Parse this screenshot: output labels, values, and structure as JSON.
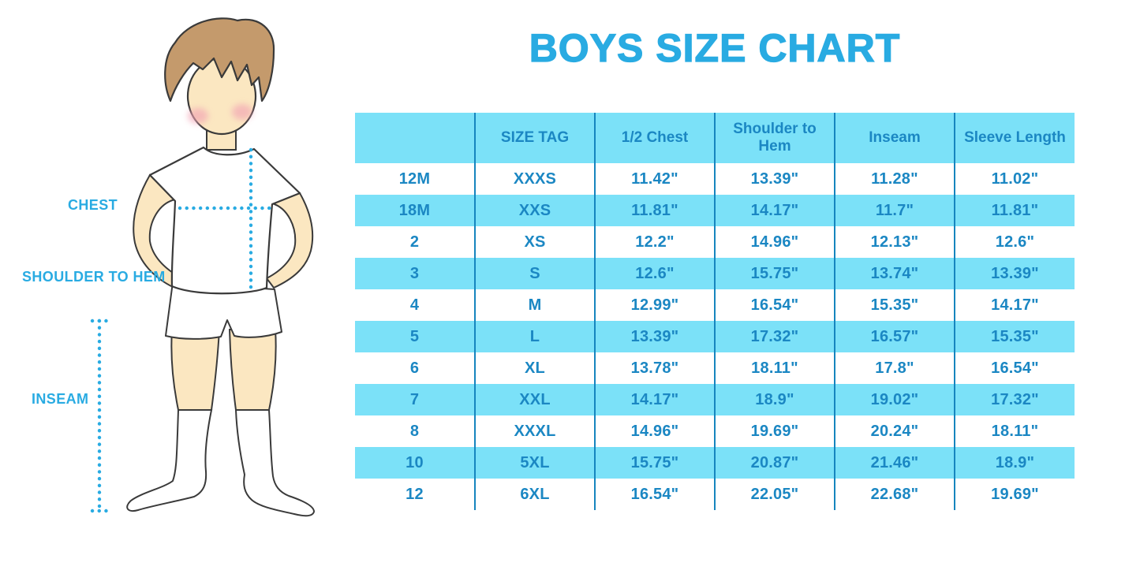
{
  "title": "BOYS SIZE CHART",
  "chart_data": {
    "type": "table",
    "title": "BOYS SIZE CHART",
    "columns": [
      "",
      "SIZE TAG",
      "1/2 Chest",
      "Shoulder to Hem",
      "Inseam",
      "Sleeve Length"
    ],
    "rows": [
      [
        "12M",
        "XXXS",
        "11.42\"",
        "13.39\"",
        "11.28\"",
        "11.02\""
      ],
      [
        "18M",
        "XXS",
        "11.81\"",
        "14.17\"",
        "11.7\"",
        "11.81\""
      ],
      [
        "2",
        "XS",
        "12.2\"",
        "14.96\"",
        "12.13\"",
        "12.6\""
      ],
      [
        "3",
        "S",
        "12.6\"",
        "15.75\"",
        "13.74\"",
        "13.39\""
      ],
      [
        "4",
        "M",
        "12.99\"",
        "16.54\"",
        "15.35\"",
        "14.17\""
      ],
      [
        "5",
        "L",
        "13.39\"",
        "17.32\"",
        "16.57\"",
        "15.35\""
      ],
      [
        "6",
        "XL",
        "13.78\"",
        "18.11\"",
        "17.8\"",
        "16.54\""
      ],
      [
        "7",
        "XXL",
        "14.17\"",
        "18.9\"",
        "19.02\"",
        "17.32\""
      ],
      [
        "8",
        "XXXL",
        "14.96\"",
        "19.69\"",
        "20.24\"",
        "18.11\""
      ],
      [
        "10",
        "5XL",
        "15.75\"",
        "20.87\"",
        "21.46\"",
        "18.9\""
      ],
      [
        "12",
        "6XL",
        "16.54\"",
        "22.05\"",
        "22.68\"",
        "19.69\""
      ]
    ],
    "layout": {
      "striped_rows": true,
      "legend_position": "none",
      "grid": "vertical-dividers"
    }
  },
  "diagram": {
    "labels": {
      "chest": "CHEST",
      "shoulder_to_hem": "SHOULDER TO HEM",
      "inseam": "INSEAM"
    }
  },
  "colors": {
    "accent_blue": "#29ABE2",
    "table_stripe": "#7BE1F8",
    "table_text": "#1B87C3",
    "table_divider": "#1685BE",
    "skin": "#FBE7C1",
    "hair": "#C49A6C",
    "cheek": "#F2A3B3",
    "outline": "#3A3A3A"
  }
}
